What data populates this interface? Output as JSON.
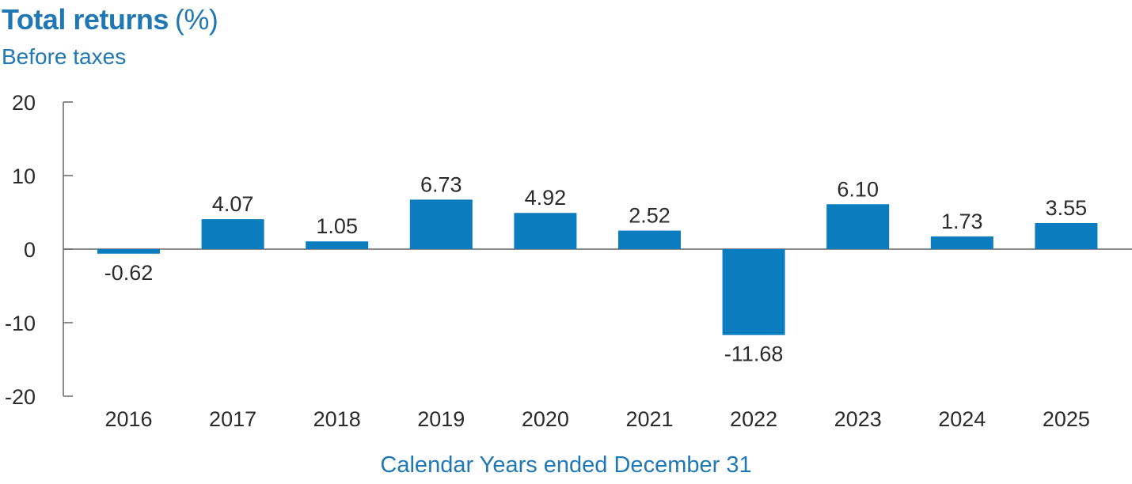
{
  "chart_data": {
    "type": "bar",
    "title": "Total returns",
    "title_unit": "(%)",
    "subtitle": "Before taxes",
    "xlabel": "Calendar Years ended December 31",
    "ylabel": "",
    "categories": [
      "2016",
      "2017",
      "2018",
      "2019",
      "2020",
      "2021",
      "2022",
      "2023",
      "2024",
      "2025"
    ],
    "values": [
      -0.62,
      4.07,
      1.05,
      6.73,
      4.92,
      2.52,
      -11.68,
      6.1,
      1.73,
      3.55
    ],
    "value_labels": [
      "-0.62",
      "4.07",
      "1.05",
      "6.73",
      "4.92",
      "2.52",
      "-11.68",
      "6.10",
      "1.73",
      "3.55"
    ],
    "ylim": [
      -20,
      20
    ],
    "yticks": [
      20,
      10,
      0,
      -10,
      -20
    ],
    "ytick_labels": [
      "20",
      "10",
      "0",
      "-10",
      "-20"
    ],
    "grid": false,
    "legend": "none",
    "bar_color": "#0b7dbf",
    "title_color": "#1f77b4",
    "text_color": "#2b2b2b",
    "axis_color": "#666666"
  }
}
